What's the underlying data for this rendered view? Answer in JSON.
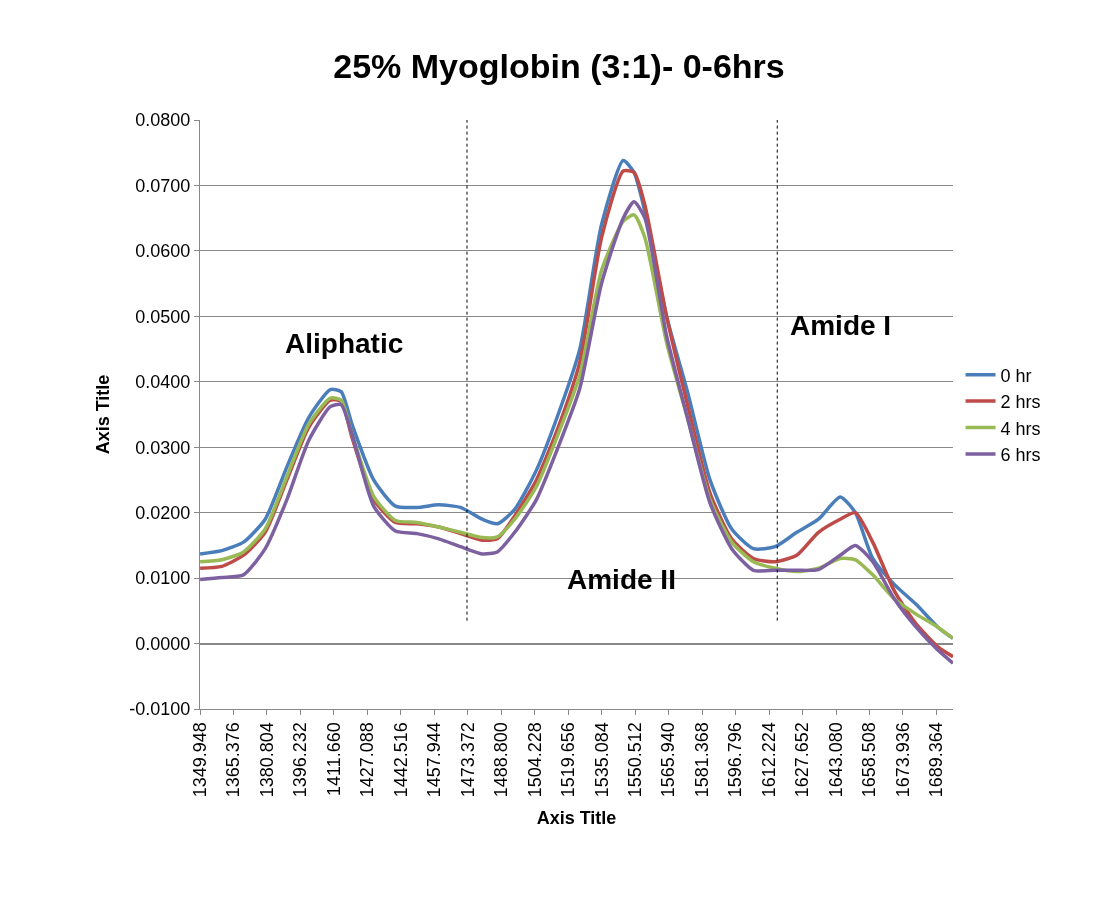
{
  "chart_data": {
    "type": "line",
    "title": "25% Myoglobin (3:1)- 0-6hrs",
    "xlabel": "Axis Title",
    "ylabel": "Axis Title",
    "x": [
      1350,
      1360,
      1370,
      1380,
      1390,
      1400,
      1410,
      1415,
      1420,
      1430,
      1440,
      1450,
      1460,
      1470,
      1480,
      1487,
      1495,
      1505,
      1515,
      1525,
      1535,
      1545,
      1550,
      1555,
      1565,
      1575,
      1585,
      1595,
      1605,
      1615,
      1625,
      1635,
      1645,
      1652,
      1660,
      1670,
      1680,
      1690,
      1697
    ],
    "series": [
      {
        "name": "0 hr",
        "color": "#4a7ebb",
        "values": [
          0.0137,
          0.0142,
          0.0155,
          0.019,
          0.027,
          0.0345,
          0.0388,
          0.0385,
          0.0335,
          0.025,
          0.021,
          0.0208,
          0.0212,
          0.0208,
          0.019,
          0.0183,
          0.0205,
          0.0265,
          0.035,
          0.045,
          0.064,
          0.0738,
          0.072,
          0.066,
          0.05,
          0.038,
          0.025,
          0.0175,
          0.0145,
          0.0148,
          0.017,
          0.019,
          0.0224,
          0.02,
          0.013,
          0.009,
          0.006,
          0.0025,
          0.0008
        ]
      },
      {
        "name": "2 hrs",
        "color": "#be4b48",
        "values": [
          0.0115,
          0.0118,
          0.0135,
          0.017,
          0.025,
          0.033,
          0.0372,
          0.037,
          0.0315,
          0.022,
          0.0185,
          0.0183,
          0.0178,
          0.0168,
          0.0158,
          0.016,
          0.0195,
          0.025,
          0.033,
          0.043,
          0.062,
          0.0722,
          0.072,
          0.067,
          0.05,
          0.036,
          0.023,
          0.016,
          0.013,
          0.0125,
          0.0135,
          0.017,
          0.019,
          0.02,
          0.0155,
          0.008,
          0.003,
          -0.0005,
          -0.002
        ]
      },
      {
        "name": "4 hrs",
        "color": "#98b954",
        "values": [
          0.0125,
          0.0128,
          0.014,
          0.0175,
          0.0255,
          0.0335,
          0.0375,
          0.0372,
          0.032,
          0.0225,
          0.0188,
          0.0185,
          0.0178,
          0.017,
          0.0162,
          0.0163,
          0.019,
          0.024,
          0.032,
          0.041,
          0.057,
          0.0645,
          0.0655,
          0.062,
          0.046,
          0.034,
          0.022,
          0.0155,
          0.0125,
          0.0115,
          0.011,
          0.0115,
          0.013,
          0.0128,
          0.0105,
          0.0068,
          0.0045,
          0.0025,
          0.0008
        ]
      },
      {
        "name": "6 hrs",
        "color": "#7d60a0",
        "values": [
          0.0098,
          0.0101,
          0.0105,
          0.0145,
          0.022,
          0.031,
          0.0362,
          0.0365,
          0.032,
          0.021,
          0.0172,
          0.0168,
          0.016,
          0.0148,
          0.0137,
          0.014,
          0.017,
          0.022,
          0.03,
          0.039,
          0.055,
          0.065,
          0.0675,
          0.065,
          0.047,
          0.034,
          0.0215,
          0.0145,
          0.0112,
          0.0112,
          0.0112,
          0.0113,
          0.0135,
          0.015,
          0.0125,
          0.0068,
          0.0025,
          -0.001,
          -0.003
        ]
      }
    ],
    "xlim": [
      1349.948,
      1697
    ],
    "xticks": [
      {
        "value": 1349.948,
        "label": "1349.948"
      },
      {
        "value": 1365.376,
        "label": "1365.376"
      },
      {
        "value": 1380.804,
        "label": "1380.804"
      },
      {
        "value": 1396.232,
        "label": "1396.232"
      },
      {
        "value": 1411.66,
        "label": "1411.660"
      },
      {
        "value": 1427.088,
        "label": "1427.088"
      },
      {
        "value": 1442.516,
        "label": "1442.516"
      },
      {
        "value": 1457.944,
        "label": "1457.944"
      },
      {
        "value": 1473.372,
        "label": "1473.372"
      },
      {
        "value": 1488.8,
        "label": "1488.800"
      },
      {
        "value": 1504.228,
        "label": "1504.228"
      },
      {
        "value": 1519.656,
        "label": "1519.656"
      },
      {
        "value": 1535.084,
        "label": "1535.084"
      },
      {
        "value": 1550.512,
        "label": "1550.512"
      },
      {
        "value": 1565.94,
        "label": "1565.940"
      },
      {
        "value": 1581.368,
        "label": "1581.368"
      },
      {
        "value": 1596.796,
        "label": "1596.796"
      },
      {
        "value": 1612.224,
        "label": "1612.224"
      },
      {
        "value": 1627.652,
        "label": "1627.652"
      },
      {
        "value": 1643.08,
        "label": "1643.080"
      },
      {
        "value": 1658.508,
        "label": "1658.508"
      },
      {
        "value": 1673.936,
        "label": "1673.936"
      },
      {
        "value": 1689.364,
        "label": "1689.364"
      }
    ],
    "ylim": [
      -0.01,
      0.08
    ],
    "yticks": [
      {
        "value": -0.01,
        "label": "-0.0100"
      },
      {
        "value": 0,
        "label": "0.0000"
      },
      {
        "value": 0.01,
        "label": "0.0100"
      },
      {
        "value": 0.02,
        "label": "0.0200"
      },
      {
        "value": 0.03,
        "label": "0.0300"
      },
      {
        "value": 0.04,
        "label": "0.0400"
      },
      {
        "value": 0.05,
        "label": "0.0500"
      },
      {
        "value": 0.06,
        "label": "0.0600"
      },
      {
        "value": 0.07,
        "label": "0.0700"
      },
      {
        "value": 0.08,
        "label": "0.0800"
      }
    ],
    "ref_lines": [
      {
        "axis": "x",
        "value": 1473,
        "color": "#000000",
        "line_style": "dotted"
      },
      {
        "axis": "x",
        "value": 1616,
        "color": "#000000",
        "line_style": "dotted"
      }
    ],
    "annotations": [
      "Aliphatic",
      "Amide II",
      "Amide I"
    ],
    "grid": "y",
    "legend": "right",
    "marker": "none",
    "line_style": "solid"
  }
}
